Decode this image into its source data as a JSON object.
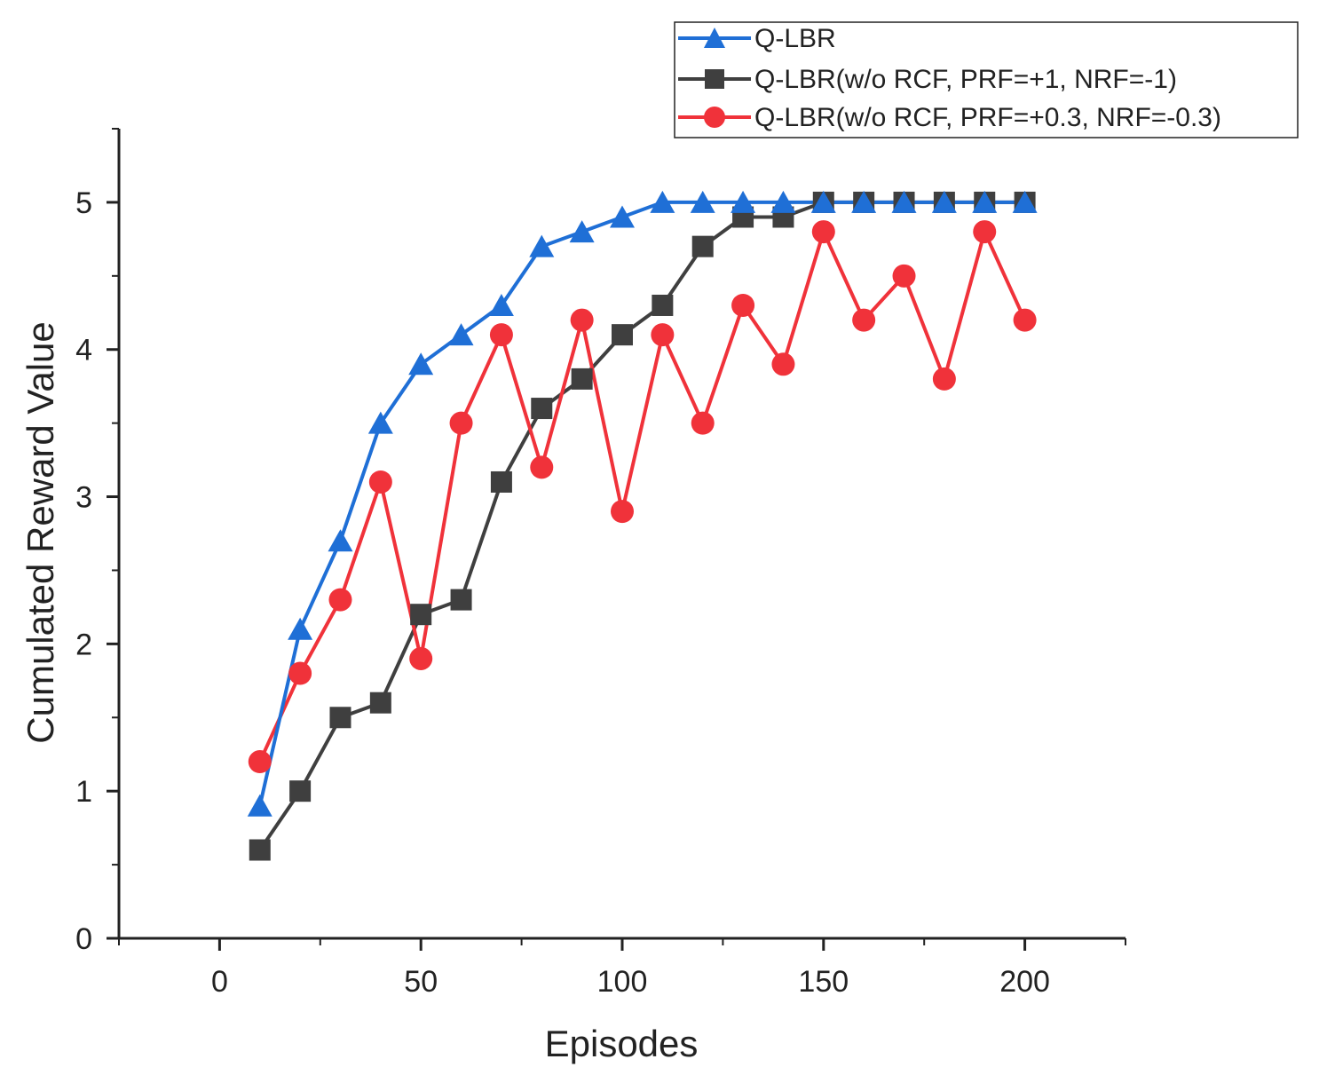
{
  "chart_data": {
    "type": "line",
    "title": "",
    "xlabel": "Episodes",
    "ylabel": "Cumulated Reward Value",
    "xlim": [
      -25,
      225
    ],
    "ylim": [
      0,
      5.5
    ],
    "xticks": [
      0,
      50,
      100,
      150,
      200
    ],
    "yticks": [
      0,
      1,
      2,
      3,
      4,
      5
    ],
    "xtick_labels": [
      "0",
      "50",
      "100",
      "150",
      "200"
    ],
    "ytick_labels": [
      "0",
      "1",
      "2",
      "3",
      "4",
      "5"
    ],
    "grid": false,
    "legend_position": "top-right",
    "x": [
      10,
      20,
      30,
      40,
      50,
      60,
      70,
      80,
      90,
      100,
      110,
      120,
      130,
      140,
      150,
      160,
      170,
      180,
      190,
      200
    ],
    "series": [
      {
        "name": "Q-LBR",
        "color": "#1f6fd6",
        "marker": "triangle",
        "values": [
          0.9,
          2.1,
          2.7,
          3.5,
          3.9,
          4.1,
          4.3,
          4.7,
          4.8,
          4.9,
          5.0,
          5.0,
          5.0,
          5.0,
          5.0,
          5.0,
          5.0,
          5.0,
          5.0,
          5.0
        ]
      },
      {
        "name": "Q-LBR(w/o RCF, PRF=+1, NRF=-1)",
        "color": "#3f3f3f",
        "marker": "square",
        "values": [
          0.6,
          1.0,
          1.5,
          1.6,
          2.2,
          2.3,
          3.1,
          3.6,
          3.8,
          4.1,
          4.3,
          4.7,
          4.9,
          4.9,
          5.0,
          5.0,
          5.0,
          5.0,
          5.0,
          5.0
        ]
      },
      {
        "name": "Q-LBR(w/o RCF, PRF=+0.3, NRF=-0.3)",
        "color": "#f0323a",
        "marker": "circle",
        "values": [
          1.2,
          1.8,
          2.3,
          3.1,
          1.9,
          3.5,
          4.1,
          3.2,
          4.2,
          2.9,
          4.1,
          3.5,
          4.3,
          3.9,
          4.8,
          4.2,
          4.5,
          3.8,
          4.8,
          4.2
        ]
      }
    ]
  }
}
